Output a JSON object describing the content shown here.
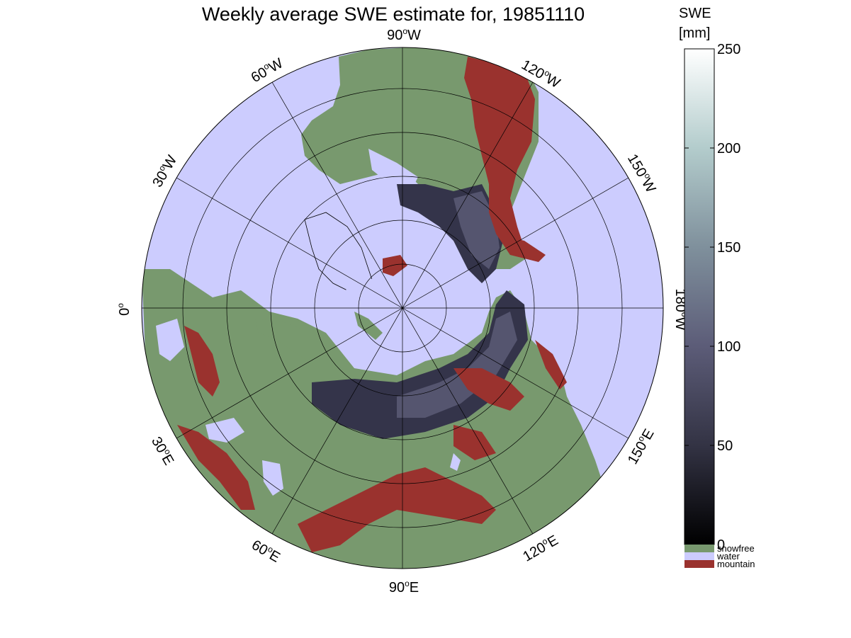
{
  "title": "Weekly average SWE estimate for, 19851110",
  "colorbar": {
    "title_line1": "SWE",
    "title_line2": "[mm]",
    "ticks": [
      0,
      50,
      100,
      150,
      200,
      250
    ],
    "range": [
      0,
      250
    ],
    "categories": [
      {
        "label": "snowfree",
        "color": "#78996e"
      },
      {
        "label": "water",
        "color": "#ccccfe"
      },
      {
        "label": "mountain",
        "color": "#9a322e"
      }
    ]
  },
  "longitude_labels": [
    {
      "lon": "0",
      "hemi": ""
    },
    {
      "lon": "30",
      "hemi": "W"
    },
    {
      "lon": "60",
      "hemi": "W"
    },
    {
      "lon": "90",
      "hemi": "W"
    },
    {
      "lon": "120",
      "hemi": "W"
    },
    {
      "lon": "150",
      "hemi": "W"
    },
    {
      "lon": "180",
      "hemi": "W"
    },
    {
      "lon": "150",
      "hemi": "E"
    },
    {
      "lon": "120",
      "hemi": "E"
    },
    {
      "lon": "90",
      "hemi": "E"
    },
    {
      "lon": "60",
      "hemi": "E"
    },
    {
      "lon": "30",
      "hemi": "E"
    }
  ],
  "colors": {
    "ocean": "#ccccfe",
    "snowfree": "#78996e",
    "mountain": "#9a322e",
    "snow_dark": "#2e2e3c",
    "snow_mid": "#55556f"
  }
}
